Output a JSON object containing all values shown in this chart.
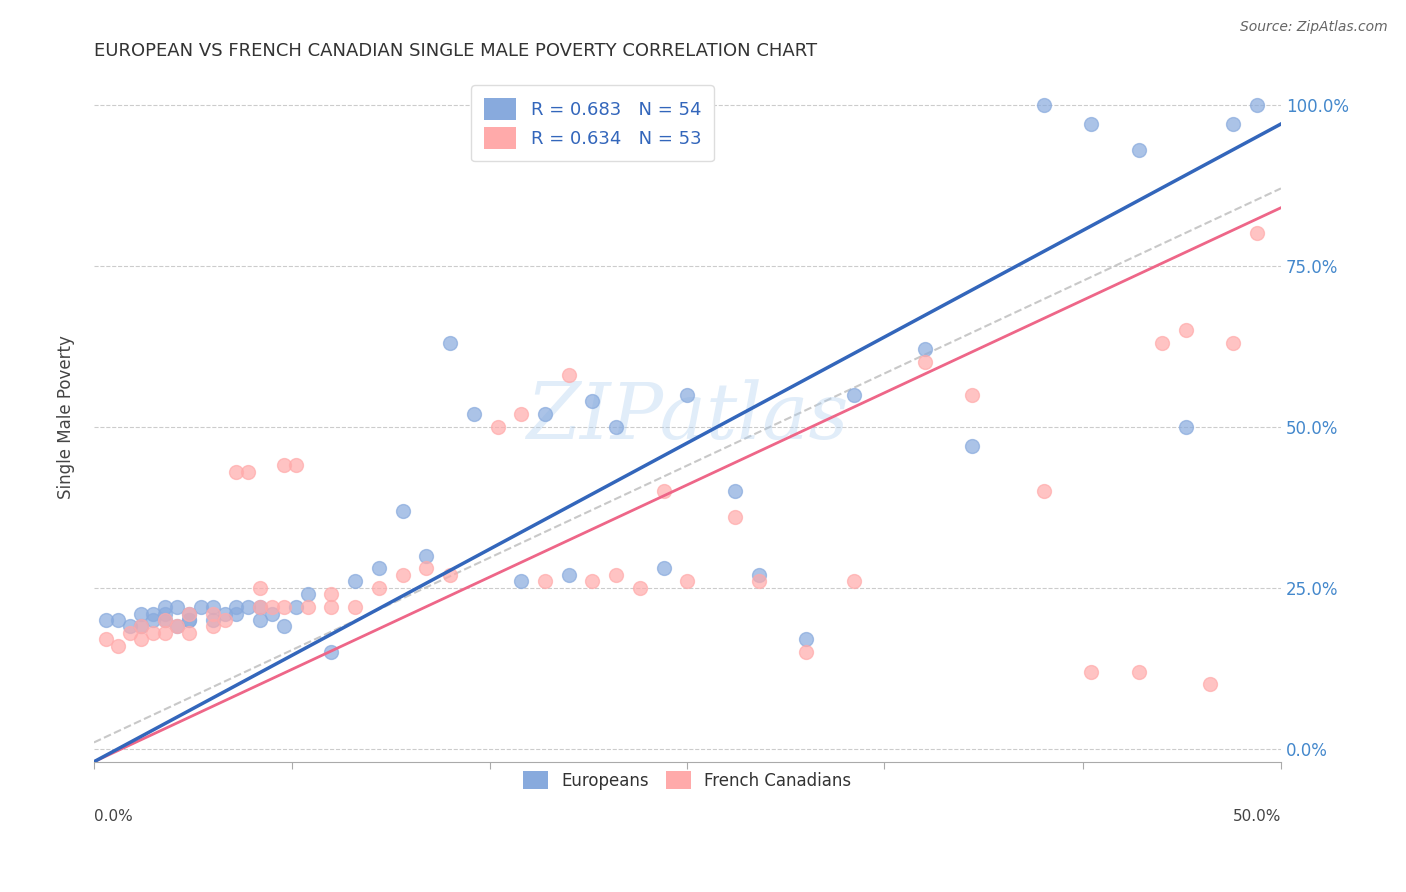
{
  "title": "EUROPEAN VS FRENCH CANADIAN SINGLE MALE POVERTY CORRELATION CHART",
  "source": "Source: ZipAtlas.com",
  "ylabel": "Single Male Poverty",
  "ytick_labels": [
    "0.0%",
    "25.0%",
    "50.0%",
    "75.0%",
    "100.0%"
  ],
  "ytick_values": [
    0.0,
    0.25,
    0.5,
    0.75,
    1.0
  ],
  "xlim": [
    0.0,
    0.5
  ],
  "ylim": [
    -0.02,
    1.05
  ],
  "watermark": "ZIPatlas",
  "blue_color": "#88AADD",
  "pink_color": "#FFAAAA",
  "blue_line_color": "#3366BB",
  "pink_line_color": "#EE6688",
  "gray_dash_color": "#BBBBBB",
  "legend_text_color": "#3366BB",
  "right_axis_color": "#4488CC",
  "legend_R_blue": "R = 0.683",
  "legend_N_blue": "N = 54",
  "legend_R_pink": "R = 0.634",
  "legend_N_pink": "N = 53",
  "legend_label_blue": "Europeans",
  "legend_label_pink": "French Canadians",
  "blue_line_slope": 1.98,
  "blue_line_intercept": -0.02,
  "pink_line_slope": 1.72,
  "pink_line_intercept": -0.02,
  "blue_scatter_x": [
    0.005,
    0.01,
    0.015,
    0.02,
    0.02,
    0.025,
    0.025,
    0.03,
    0.03,
    0.03,
    0.035,
    0.035,
    0.04,
    0.04,
    0.04,
    0.045,
    0.05,
    0.05,
    0.055,
    0.06,
    0.06,
    0.065,
    0.07,
    0.07,
    0.075,
    0.08,
    0.085,
    0.09,
    0.1,
    0.11,
    0.12,
    0.13,
    0.14,
    0.15,
    0.16,
    0.18,
    0.19,
    0.2,
    0.21,
    0.22,
    0.24,
    0.25,
    0.27,
    0.28,
    0.3,
    0.32,
    0.35,
    0.37,
    0.4,
    0.42,
    0.44,
    0.46,
    0.48,
    0.49
  ],
  "blue_scatter_y": [
    0.2,
    0.2,
    0.19,
    0.19,
    0.21,
    0.2,
    0.21,
    0.2,
    0.21,
    0.22,
    0.19,
    0.22,
    0.2,
    0.2,
    0.21,
    0.22,
    0.2,
    0.22,
    0.21,
    0.21,
    0.22,
    0.22,
    0.2,
    0.22,
    0.21,
    0.19,
    0.22,
    0.24,
    0.15,
    0.26,
    0.28,
    0.37,
    0.3,
    0.63,
    0.52,
    0.26,
    0.52,
    0.27,
    0.54,
    0.5,
    0.28,
    0.55,
    0.4,
    0.27,
    0.17,
    0.55,
    0.62,
    0.47,
    1.0,
    0.97,
    0.93,
    0.5,
    0.97,
    1.0
  ],
  "pink_scatter_x": [
    0.005,
    0.01,
    0.015,
    0.02,
    0.02,
    0.025,
    0.03,
    0.03,
    0.035,
    0.04,
    0.04,
    0.05,
    0.05,
    0.055,
    0.06,
    0.065,
    0.07,
    0.07,
    0.075,
    0.08,
    0.08,
    0.085,
    0.09,
    0.1,
    0.1,
    0.11,
    0.12,
    0.13,
    0.14,
    0.15,
    0.17,
    0.18,
    0.19,
    0.2,
    0.21,
    0.22,
    0.23,
    0.24,
    0.25,
    0.27,
    0.28,
    0.3,
    0.32,
    0.35,
    0.37,
    0.4,
    0.42,
    0.44,
    0.45,
    0.46,
    0.47,
    0.48,
    0.49
  ],
  "pink_scatter_y": [
    0.17,
    0.16,
    0.18,
    0.17,
    0.19,
    0.18,
    0.18,
    0.2,
    0.19,
    0.18,
    0.21,
    0.19,
    0.21,
    0.2,
    0.43,
    0.43,
    0.22,
    0.25,
    0.22,
    0.22,
    0.44,
    0.44,
    0.22,
    0.24,
    0.22,
    0.22,
    0.25,
    0.27,
    0.28,
    0.27,
    0.5,
    0.52,
    0.26,
    0.58,
    0.26,
    0.27,
    0.25,
    0.4,
    0.26,
    0.36,
    0.26,
    0.15,
    0.26,
    0.6,
    0.55,
    0.4,
    0.12,
    0.12,
    0.63,
    0.65,
    0.1,
    0.63,
    0.8
  ]
}
